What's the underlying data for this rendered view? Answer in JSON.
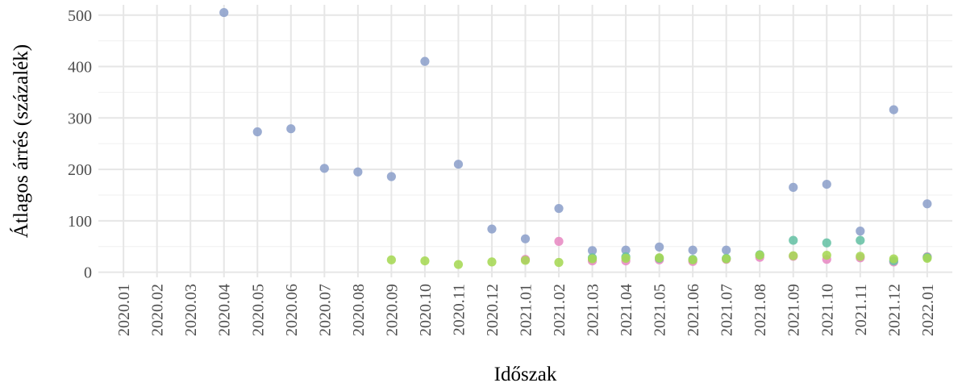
{
  "chart_data": {
    "type": "scatter",
    "title": "",
    "xlabel": "Időszak",
    "ylabel": "Átlagos árrés (százalék)",
    "ylim": [
      -10,
      520
    ],
    "yticks": [
      0,
      100,
      200,
      300,
      400,
      500
    ],
    "grid": true,
    "legend": "none",
    "categories": [
      "2020.01",
      "2020.02",
      "2020.03",
      "2020.04",
      "2020.05",
      "2020.06",
      "2020.07",
      "2020.08",
      "2020.09",
      "2020.10",
      "2020.11",
      "2020.12",
      "2021.01",
      "2021.02",
      "2021.03",
      "2021.04",
      "2021.05",
      "2021.06",
      "2021.07",
      "2021.08",
      "2021.09",
      "2021.10",
      "2021.11",
      "2021.12",
      "2022.01"
    ],
    "series": [
      {
        "color": "#8DA0CB",
        "values": [
          null,
          null,
          null,
          505,
          273,
          279,
          202,
          195,
          186,
          410,
          210,
          84,
          65,
          124,
          42,
          43,
          49,
          43,
          43,
          null,
          165,
          171,
          80,
          316,
          133
        ]
      },
      {
        "color": "#E78AC3",
        "values": [
          null,
          null,
          null,
          null,
          null,
          null,
          null,
          null,
          null,
          null,
          null,
          null,
          25,
          60,
          22,
          22,
          24,
          21,
          25,
          29,
          31,
          25,
          28,
          20,
          30
        ]
      },
      {
        "color": "#66C2A5",
        "values": [
          null,
          null,
          null,
          null,
          null,
          null,
          null,
          null,
          null,
          null,
          null,
          null,
          null,
          null,
          28,
          30,
          27,
          25,
          27,
          34,
          62,
          57,
          62,
          22,
          29
        ]
      },
      {
        "color": "#A6D854",
        "values": [
          null,
          null,
          null,
          null,
          null,
          null,
          null,
          null,
          24,
          22,
          15,
          20,
          23,
          19,
          26,
          27,
          28,
          24,
          26,
          33,
          32,
          33,
          31,
          26,
          27
        ]
      }
    ]
  }
}
